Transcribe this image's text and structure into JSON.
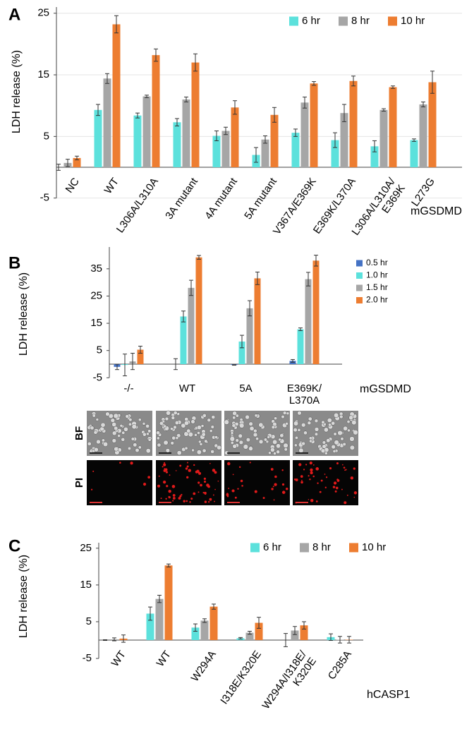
{
  "chart_data": [
    {
      "type": "bar",
      "panel": "A",
      "y_label": "LDH release (%)",
      "x_label": "mGSDMD",
      "categories": [
        "NC",
        "WT",
        "L306A/L310A",
        "3A mutant",
        "4A mutant",
        "5A mutant",
        "V367A/E369K",
        "E369K/L370A",
        "L306A/L310A/\nE369K",
        "L273G"
      ],
      "series": [
        {
          "name": "6 hr",
          "color": "#5ce1dc",
          "values": [
            0,
            9.3,
            8.4,
            7.3,
            5.1,
            2.0,
            5.6,
            4.4,
            3.4,
            4.4
          ],
          "errors": [
            0.5,
            0.9,
            0.4,
            0.6,
            0.8,
            1.2,
            0.6,
            1.2,
            0.9,
            0.2
          ]
        },
        {
          "name": "8 hr",
          "color": "#a6a6a6",
          "values": [
            0.7,
            14.4,
            11.5,
            11.0,
            5.9,
            4.5,
            10.5,
            8.8,
            9.3,
            10.2
          ],
          "errors": [
            0.6,
            0.8,
            0.2,
            0.4,
            0.6,
            0.6,
            0.9,
            1.4,
            0.2,
            0.4
          ]
        },
        {
          "name": "10 hr",
          "color": "#ed7d31",
          "values": [
            1.5,
            23.2,
            18.2,
            17.0,
            9.7,
            8.5,
            13.6,
            14.0,
            13.0,
            13.8
          ],
          "errors": [
            0.3,
            1.4,
            1.0,
            1.4,
            1.1,
            1.2,
            0.3,
            0.8,
            0.2,
            1.8
          ]
        }
      ],
      "ylim": [
        -5,
        26
      ],
      "yticks": [
        -5,
        5,
        15,
        25
      ],
      "grid": true,
      "legend": "top-right"
    },
    {
      "type": "bar",
      "panel": "B",
      "y_label": "LDH release (%)",
      "x_label": "mGSDMD",
      "categories": [
        "-/-",
        "WT",
        "5A",
        "E369K/\nL370A"
      ],
      "series": [
        {
          "name": "0.5 hr",
          "color": "#4472c4",
          "values": [
            -1.0,
            0,
            -0.3,
            1.2
          ],
          "errors": [
            1.0,
            2.0,
            0.1,
            0.5
          ]
        },
        {
          "name": "1.0 hr",
          "color": "#5ce1dc",
          "values": [
            -0.3,
            17.5,
            8.3,
            12.8
          ],
          "errors": [
            4.0,
            2.0,
            2.3,
            0.5
          ]
        },
        {
          "name": "1.5 hr",
          "color": "#a6a6a6",
          "values": [
            1.0,
            28.0,
            20.5,
            31.2
          ],
          "errors": [
            3.0,
            2.8,
            2.8,
            2.5
          ]
        },
        {
          "name": "2.0 hr",
          "color": "#ed7d31",
          "values": [
            5.3,
            39.2,
            31.5,
            38.0
          ],
          "errors": [
            1.3,
            0.7,
            2.3,
            2.0
          ]
        }
      ],
      "ylim": [
        -5,
        43
      ],
      "yticks": [
        -5,
        5,
        15,
        25,
        35
      ],
      "grid": false,
      "legend": "right",
      "image_rows": [
        "BF",
        "PI"
      ]
    },
    {
      "type": "bar",
      "panel": "C",
      "y_label": "LDH release (%)",
      "x_label": "hCASP1",
      "categories": [
        "WT",
        "WT",
        "W294A",
        "I318E/K320E",
        "W294A/I318E/\nK320E",
        "C285A"
      ],
      "series": [
        {
          "name": "6 hr",
          "color": "#5ce1dc",
          "values": [
            0,
            7.2,
            3.4,
            0.5,
            0,
            0.8
          ],
          "errors": [
            0.1,
            1.8,
            1.0,
            0.2,
            1.8,
            0.9
          ]
        },
        {
          "name": "8 hr",
          "color": "#a6a6a6",
          "values": [
            0.2,
            11.2,
            5.3,
            2.0,
            2.6,
            0.1
          ],
          "errors": [
            0.4,
            1.0,
            0.5,
            0.4,
            1.1,
            0.9
          ]
        },
        {
          "name": "10 hr",
          "color": "#ed7d31",
          "values": [
            0.4,
            20.3,
            9.1,
            4.7,
            4.0,
            0.1
          ],
          "errors": [
            1.0,
            0.4,
            0.7,
            1.5,
            1.0,
            0.9
          ]
        }
      ],
      "ylim": [
        -5,
        26.5
      ],
      "yticks": [
        -5,
        5,
        15,
        25
      ],
      "grid": false,
      "legend": "top-right"
    }
  ]
}
